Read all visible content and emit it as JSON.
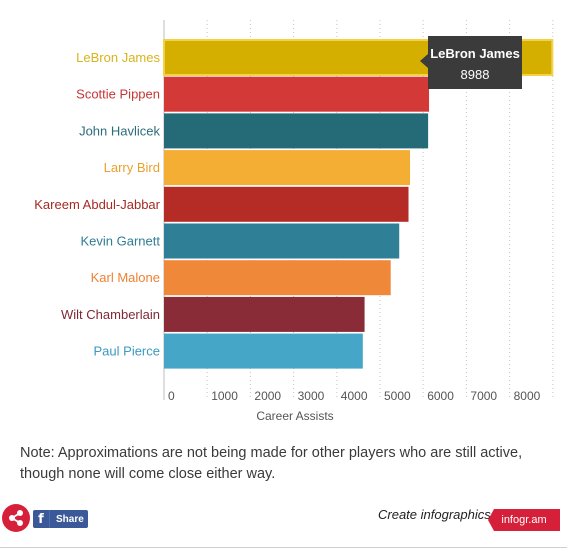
{
  "chart_data": {
    "type": "bar",
    "orientation": "horizontal",
    "categories": [
      "LeBron James",
      "Scottie Pippen",
      "John Havlicek",
      "Larry Bird",
      "Kareem Abdul-Jabbar",
      "Kevin Garnett",
      "Karl Malone",
      "Wilt Chamberlain",
      "Paul Pierce"
    ],
    "values": [
      8988,
      6135,
      6114,
      5695,
      5660,
      5445,
      5248,
      4643,
      4602
    ],
    "colors": [
      "#d4af00",
      "#d33a37",
      "#246b77",
      "#f4ae33",
      "#b42c25",
      "#2f7f97",
      "#f0883a",
      "#8a2c38",
      "#45a6c8"
    ],
    "label_colors": [
      "#d8b41a",
      "#c53635",
      "#2c6c7c",
      "#e9a12e",
      "#a52b24",
      "#2f7c95",
      "#ed8232",
      "#7e2a33",
      "#3a9ac2"
    ],
    "xlabel": "Career Assists",
    "xlim": [
      0,
      9000
    ],
    "x_ticks": [
      0,
      1000,
      2000,
      3000,
      4000,
      5000,
      6000,
      7000,
      8000
    ],
    "grid": true,
    "tooltip": {
      "name": "LeBron James",
      "value": "8988"
    }
  },
  "note": "Note: Approximations are not being made for other players who are still active, though none will come close either way.",
  "footer": {
    "share_label": "Share",
    "fb_letter": "f",
    "create_label": "Create infographics",
    "brand_label": "infogr.am"
  },
  "icons": {
    "share": "share-icon",
    "facebook": "facebook-icon"
  }
}
